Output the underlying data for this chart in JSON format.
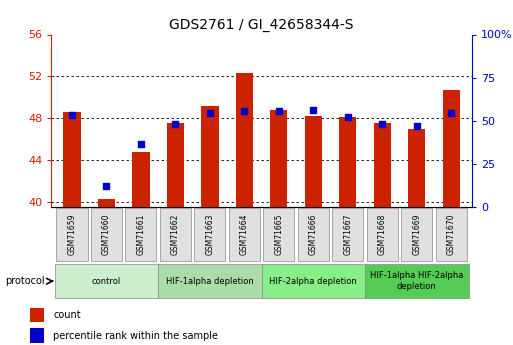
{
  "title": "GDS2761 / GI_42658344-S",
  "samples": [
    "GSM71659",
    "GSM71660",
    "GSM71661",
    "GSM71662",
    "GSM71663",
    "GSM71664",
    "GSM71665",
    "GSM71666",
    "GSM71667",
    "GSM71668",
    "GSM71669",
    "GSM71670"
  ],
  "count_values": [
    48.6,
    40.3,
    44.8,
    47.5,
    49.2,
    52.3,
    48.8,
    48.2,
    48.1,
    47.5,
    47.0,
    50.7
  ],
  "percentile_values": [
    48.3,
    41.5,
    45.5,
    47.4,
    48.5,
    48.7,
    48.7,
    48.8,
    48.1,
    47.4,
    47.2,
    48.5
  ],
  "ylim_left": [
    39.5,
    56
  ],
  "ylim_right": [
    0,
    100
  ],
  "yticks_left": [
    40,
    44,
    48,
    52,
    56
  ],
  "yticks_right": [
    0,
    25,
    50,
    75,
    100
  ],
  "yticklabels_right": [
    "0",
    "25",
    "50",
    "75",
    "100%"
  ],
  "bar_color": "#cc2200",
  "dot_color": "#0000cc",
  "bar_width": 0.5,
  "bg_color": "#ffffff",
  "protocol_groups": [
    {
      "label": "control",
      "start": 0,
      "end": 2,
      "color": "#cceecc"
    },
    {
      "label": "HIF-1alpha depletion",
      "start": 3,
      "end": 5,
      "color": "#aaddaa"
    },
    {
      "label": "HIF-2alpha depletion",
      "start": 6,
      "end": 8,
      "color": "#88ee88"
    },
    {
      "label": "HIF-1alpha HIF-2alpha\ndepletion",
      "start": 9,
      "end": 11,
      "color": "#55cc55"
    }
  ],
  "tick_label_color_left": "#cc2200",
  "tick_label_color_right": "#0000cc"
}
